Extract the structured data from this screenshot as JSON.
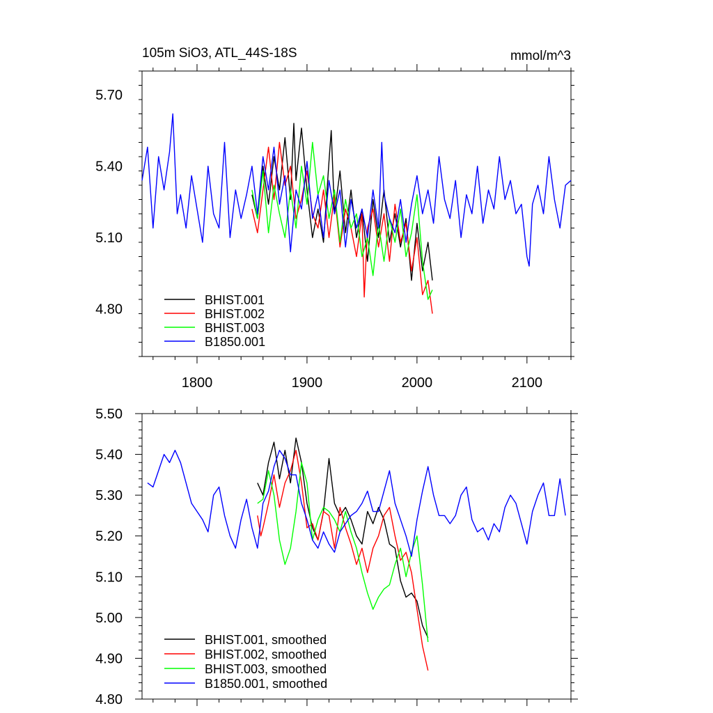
{
  "figure": {
    "title_left": "105m SiO3, ATL_44S-18S",
    "title_right": "mmol/m^3"
  },
  "chart_data": [
    {
      "type": "line",
      "panel": "top",
      "title": "105m SiO3, ATL_44S-18S",
      "ylabel_right": "mmol/m^3",
      "xlim": [
        1750,
        2140
      ],
      "ylim": [
        4.6,
        5.8
      ],
      "xticks": [
        1800,
        1900,
        2000,
        2100
      ],
      "xtick_labels": [
        "1800",
        "1900",
        "2000",
        "2100"
      ],
      "yticks": [
        4.8,
        5.1,
        5.4,
        5.7
      ],
      "ytick_labels": [
        "4.80",
        "5.10",
        "5.40",
        "5.70"
      ],
      "legend_position": "bottom-left",
      "series": [
        {
          "name": "BHIST.001",
          "color": "#000000",
          "x": [
            1850,
            1855,
            1860,
            1865,
            1870,
            1875,
            1880,
            1885,
            1888,
            1890,
            1895,
            1900,
            1905,
            1910,
            1915,
            1920,
            1922,
            1925,
            1930,
            1935,
            1940,
            1945,
            1950,
            1955,
            1960,
            1965,
            1970,
            1975,
            1980,
            1985,
            1990,
            1995,
            2000,
            2005,
            2010,
            2014
          ],
          "y": [
            5.28,
            5.18,
            5.4,
            5.24,
            5.44,
            5.3,
            5.52,
            5.26,
            5.58,
            5.34,
            5.56,
            5.3,
            5.1,
            5.22,
            5.08,
            5.42,
            5.55,
            5.2,
            5.38,
            5.12,
            5.3,
            5.1,
            5.22,
            5.0,
            5.26,
            5.1,
            5.3,
            5.08,
            5.2,
            5.06,
            5.18,
            4.92,
            5.16,
            4.96,
            5.08,
            4.92
          ]
        },
        {
          "name": "BHIST.002",
          "color": "#ff0000",
          "x": [
            1850,
            1855,
            1860,
            1865,
            1870,
            1875,
            1880,
            1885,
            1890,
            1895,
            1900,
            1905,
            1910,
            1915,
            1920,
            1925,
            1930,
            1935,
            1940,
            1945,
            1950,
            1952,
            1955,
            1960,
            1965,
            1970,
            1975,
            1980,
            1985,
            1990,
            1995,
            2000,
            2005,
            2010,
            2014
          ],
          "y": [
            5.22,
            5.12,
            5.3,
            5.48,
            5.26,
            5.5,
            5.32,
            5.4,
            5.18,
            5.26,
            5.38,
            5.2,
            5.14,
            5.3,
            5.1,
            5.28,
            5.06,
            5.22,
            5.14,
            5.02,
            5.2,
            4.85,
            5.14,
            5.22,
            5.06,
            5.2,
            5.0,
            5.24,
            5.08,
            5.16,
            4.96,
            5.1,
            4.86,
            4.92,
            4.78
          ]
        },
        {
          "name": "BHIST.003",
          "color": "#00ff00",
          "x": [
            1850,
            1855,
            1860,
            1865,
            1870,
            1875,
            1880,
            1885,
            1890,
            1895,
            1900,
            1905,
            1910,
            1915,
            1920,
            1925,
            1930,
            1935,
            1940,
            1945,
            1950,
            1955,
            1960,
            1965,
            1970,
            1975,
            1980,
            1985,
            1990,
            1995,
            2000,
            2005,
            2010,
            2014
          ],
          "y": [
            5.3,
            5.18,
            5.38,
            5.12,
            5.32,
            5.2,
            5.1,
            5.3,
            5.14,
            5.4,
            5.24,
            5.5,
            5.28,
            5.36,
            5.18,
            5.3,
            5.08,
            5.26,
            5.14,
            5.2,
            5.02,
            5.1,
            4.94,
            5.16,
            5.0,
            5.18,
            5.08,
            5.22,
            5.02,
            5.12,
            5.28,
            5.0,
            4.84,
            4.88
          ]
        },
        {
          "name": "B1850.001",
          "color": "#0000ff",
          "x": [
            1750,
            1755,
            1760,
            1765,
            1770,
            1775,
            1778,
            1782,
            1785,
            1790,
            1795,
            1800,
            1805,
            1810,
            1815,
            1820,
            1825,
            1830,
            1835,
            1840,
            1845,
            1850,
            1855,
            1860,
            1865,
            1870,
            1875,
            1880,
            1885,
            1890,
            1895,
            1900,
            1905,
            1910,
            1915,
            1920,
            1925,
            1930,
            1935,
            1940,
            1945,
            1950,
            1955,
            1960,
            1965,
            1968,
            1970,
            1975,
            1980,
            1985,
            1990,
            1995,
            2000,
            2005,
            2010,
            2015,
            2020,
            2025,
            2030,
            2035,
            2040,
            2045,
            2050,
            2055,
            2060,
            2065,
            2070,
            2075,
            2080,
            2085,
            2090,
            2095,
            2100,
            2102,
            2105,
            2110,
            2115,
            2120,
            2125,
            2130,
            2135,
            2140
          ],
          "y": [
            5.34,
            5.48,
            5.14,
            5.44,
            5.3,
            5.46,
            5.62,
            5.2,
            5.28,
            5.14,
            5.36,
            5.22,
            5.08,
            5.4,
            5.2,
            5.14,
            5.5,
            5.1,
            5.3,
            5.18,
            5.28,
            5.4,
            5.2,
            5.44,
            5.3,
            5.48,
            5.24,
            5.36,
            5.04,
            5.3,
            5.22,
            5.42,
            5.18,
            5.28,
            5.1,
            5.34,
            5.2,
            5.3,
            5.06,
            5.26,
            5.14,
            5.22,
            5.1,
            5.3,
            5.14,
            5.5,
            5.28,
            5.18,
            5.12,
            5.26,
            5.08,
            5.24,
            5.36,
            5.2,
            5.3,
            5.16,
            5.44,
            5.26,
            5.18,
            5.34,
            5.1,
            5.28,
            5.2,
            5.4,
            5.16,
            5.3,
            5.22,
            5.44,
            5.26,
            5.34,
            5.2,
            5.24,
            5.02,
            4.98,
            5.24,
            5.32,
            5.2,
            5.44,
            5.26,
            5.14,
            5.32,
            5.34
          ]
        }
      ]
    },
    {
      "type": "line",
      "panel": "bottom",
      "xlim": [
        1750,
        2140
      ],
      "ylim": [
        4.8,
        5.5
      ],
      "xticks": [
        1800,
        1900,
        2000,
        2100
      ],
      "yticks": [
        4.8,
        4.9,
        5.0,
        5.1,
        5.2,
        5.3,
        5.4,
        5.5
      ],
      "ytick_labels": [
        "4.80",
        "4.90",
        "5.00",
        "5.10",
        "5.20",
        "5.30",
        "5.40",
        "5.50"
      ],
      "legend_position": "bottom-left",
      "series": [
        {
          "name": "BHIST.001, smoothed",
          "color": "#000000",
          "x": [
            1855,
            1860,
            1865,
            1870,
            1875,
            1880,
            1885,
            1890,
            1895,
            1900,
            1905,
            1910,
            1915,
            1920,
            1925,
            1930,
            1935,
            1940,
            1945,
            1950,
            1955,
            1960,
            1965,
            1970,
            1975,
            1980,
            1985,
            1990,
            1995,
            2000,
            2005,
            2010
          ],
          "y": [
            5.33,
            5.3,
            5.38,
            5.43,
            5.34,
            5.41,
            5.33,
            5.44,
            5.38,
            5.28,
            5.22,
            5.19,
            5.26,
            5.39,
            5.28,
            5.25,
            5.27,
            5.24,
            5.2,
            5.18,
            5.26,
            5.23,
            5.27,
            5.24,
            5.18,
            5.17,
            5.09,
            5.05,
            5.06,
            5.04,
            4.98,
            4.95
          ]
        },
        {
          "name": "BHIST.002, smoothed",
          "color": "#ff0000",
          "x": [
            1855,
            1858,
            1860,
            1865,
            1870,
            1875,
            1880,
            1885,
            1890,
            1895,
            1900,
            1905,
            1910,
            1915,
            1920,
            1925,
            1930,
            1935,
            1940,
            1945,
            1950,
            1955,
            1960,
            1965,
            1970,
            1975,
            1980,
            1985,
            1990,
            1995,
            2000,
            2005,
            2010
          ],
          "y": [
            5.25,
            5.2,
            5.22,
            5.28,
            5.35,
            5.27,
            5.33,
            5.36,
            5.41,
            5.33,
            5.22,
            5.23,
            5.19,
            5.26,
            5.25,
            5.17,
            5.27,
            5.22,
            5.18,
            5.13,
            5.17,
            5.11,
            5.17,
            5.2,
            5.25,
            5.27,
            5.2,
            5.14,
            5.16,
            5.11,
            5.02,
            4.93,
            4.87
          ]
        },
        {
          "name": "BHIST.003, smoothed",
          "color": "#00ff00",
          "x": [
            1855,
            1860,
            1865,
            1870,
            1875,
            1880,
            1885,
            1890,
            1895,
            1900,
            1905,
            1910,
            1915,
            1920,
            1925,
            1930,
            1935,
            1940,
            1945,
            1950,
            1955,
            1960,
            1965,
            1970,
            1975,
            1980,
            1985,
            1990,
            1995,
            2000,
            2005,
            2010
          ],
          "y": [
            5.28,
            5.29,
            5.36,
            5.3,
            5.19,
            5.13,
            5.17,
            5.26,
            5.38,
            5.33,
            5.19,
            5.24,
            5.27,
            5.26,
            5.24,
            5.21,
            5.26,
            5.21,
            5.17,
            5.11,
            5.06,
            5.02,
            5.05,
            5.07,
            5.08,
            5.13,
            5.17,
            5.1,
            5.16,
            5.2,
            5.08,
            4.94
          ]
        },
        {
          "name": "B1850.001, smoothed",
          "color": "#0000ff",
          "x": [
            1755,
            1760,
            1765,
            1770,
            1775,
            1780,
            1785,
            1790,
            1795,
            1800,
            1805,
            1810,
            1815,
            1820,
            1825,
            1830,
            1835,
            1840,
            1845,
            1850,
            1855,
            1860,
            1865,
            1870,
            1875,
            1880,
            1885,
            1890,
            1895,
            1900,
            1905,
            1910,
            1915,
            1920,
            1925,
            1930,
            1935,
            1940,
            1945,
            1950,
            1955,
            1960,
            1965,
            1970,
            1975,
            1980,
            1985,
            1990,
            1995,
            2000,
            2005,
            2010,
            2015,
            2020,
            2025,
            2030,
            2035,
            2040,
            2045,
            2050,
            2055,
            2060,
            2065,
            2070,
            2075,
            2080,
            2085,
            2090,
            2095,
            2100,
            2105,
            2110,
            2115,
            2120,
            2125,
            2130,
            2135
          ],
          "y": [
            5.33,
            5.32,
            5.36,
            5.4,
            5.38,
            5.41,
            5.38,
            5.33,
            5.28,
            5.26,
            5.24,
            5.21,
            5.3,
            5.32,
            5.25,
            5.2,
            5.17,
            5.24,
            5.29,
            5.22,
            5.17,
            5.28,
            5.31,
            5.37,
            5.41,
            5.39,
            5.35,
            5.35,
            5.28,
            5.24,
            5.19,
            5.17,
            5.21,
            5.18,
            5.16,
            5.21,
            5.23,
            5.25,
            5.26,
            5.28,
            5.31,
            5.26,
            5.26,
            5.31,
            5.36,
            5.28,
            5.24,
            5.2,
            5.15,
            5.24,
            5.31,
            5.37,
            5.3,
            5.25,
            5.25,
            5.23,
            5.25,
            5.3,
            5.32,
            5.24,
            5.21,
            5.22,
            5.19,
            5.23,
            5.21,
            5.27,
            5.3,
            5.28,
            5.23,
            5.18,
            5.26,
            5.3,
            5.33,
            5.25,
            5.25,
            5.34,
            5.25
          ]
        }
      ]
    }
  ]
}
